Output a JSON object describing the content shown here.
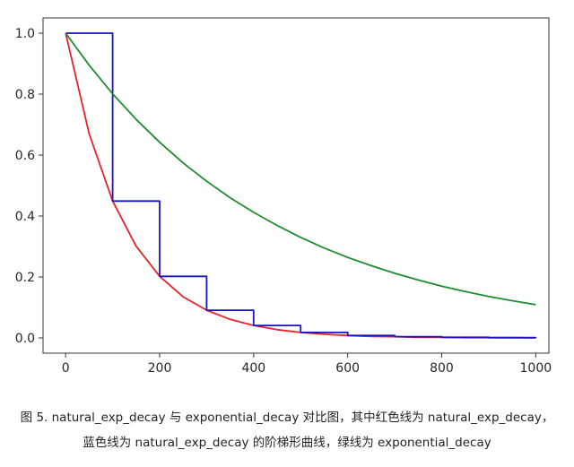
{
  "chart_data": {
    "type": "line",
    "title": "",
    "xlabel": "",
    "ylabel": "",
    "xlim": [
      -48,
      1028
    ],
    "ylim": [
      -0.05,
      1.05
    ],
    "x_ticks": [
      0,
      200,
      400,
      600,
      800,
      1000
    ],
    "y_ticks": [
      0.0,
      0.2,
      0.4,
      0.6,
      0.8,
      1.0
    ],
    "x_tick_labels": [
      "0",
      "200",
      "400",
      "600",
      "800",
      "1000"
    ],
    "y_tick_labels": [
      "0.0",
      "0.2",
      "0.4",
      "0.6",
      "0.8",
      "1.0"
    ],
    "grid": false,
    "legend": "none",
    "series": [
      {
        "color": "#e8222b",
        "step": false,
        "x": [
          0,
          50,
          100,
          150,
          200,
          250,
          300,
          350,
          400,
          450,
          500,
          550,
          600,
          650,
          700,
          750,
          800,
          850,
          900,
          950,
          1000
        ],
        "y": [
          1.0,
          0.67,
          0.449,
          0.301,
          0.202,
          0.135,
          0.091,
          0.061,
          0.041,
          0.027,
          0.018,
          0.012,
          0.008,
          0.005,
          0.004,
          0.002,
          0.002,
          0.001,
          0.001,
          0.001,
          0.0
        ]
      },
      {
        "color": "#1414c8",
        "step": true,
        "x": [
          0,
          100,
          200,
          300,
          400,
          500,
          600,
          700,
          800,
          900,
          1000
        ],
        "y": [
          1.0,
          0.449,
          0.202,
          0.091,
          0.041,
          0.018,
          0.008,
          0.004,
          0.002,
          0.001,
          0.0
        ]
      },
      {
        "color": "#1e8c2e",
        "step": false,
        "x": [
          0,
          50,
          100,
          150,
          200,
          250,
          300,
          350,
          400,
          450,
          500,
          550,
          600,
          650,
          700,
          750,
          800,
          850,
          900,
          950,
          1000
        ],
        "y": [
          1.0,
          0.895,
          0.801,
          0.717,
          0.642,
          0.574,
          0.514,
          0.46,
          0.412,
          0.369,
          0.33,
          0.295,
          0.264,
          0.237,
          0.212,
          0.19,
          0.17,
          0.152,
          0.136,
          0.122,
          0.109
        ]
      }
    ]
  },
  "caption": {
    "line1": "图 5. natural_exp_decay 与 exponential_decay 对比图，其中红色线为 natural_exp_decay，",
    "line2": "蓝色线为 natural_exp_decay 的阶梯形曲线，绿线为 exponential_decay"
  }
}
